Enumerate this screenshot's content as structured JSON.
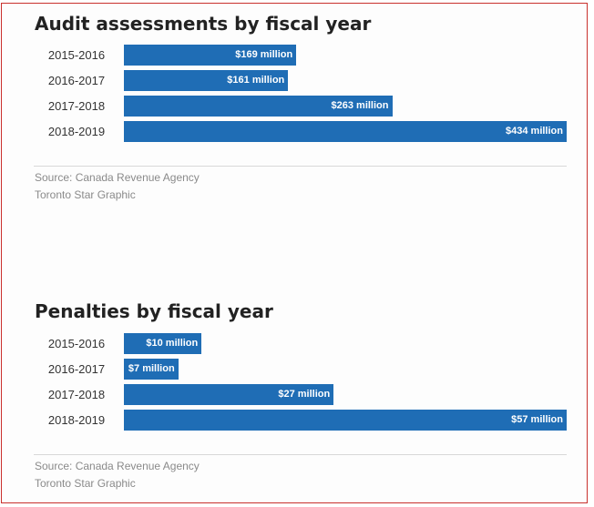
{
  "chart_data": [
    {
      "type": "bar",
      "orientation": "horizontal",
      "title": "Audit assessments by fiscal year",
      "categories": [
        "2015-2016",
        "2016-2017",
        "2017-2018",
        "2018-2019"
      ],
      "values": [
        169,
        161,
        263,
        434
      ],
      "value_labels": [
        "$169 million",
        "$161 million",
        "$263 million",
        "$434 million"
      ],
      "xlim": [
        0,
        434
      ],
      "grid": false,
      "source": "Source: Canada Revenue Agency",
      "credit": "Toronto Star Graphic",
      "color": "#1f6db5"
    },
    {
      "type": "bar",
      "orientation": "horizontal",
      "title": "Penalties by fiscal year",
      "categories": [
        "2015-2016",
        "2016-2017",
        "2017-2018",
        "2018-2019"
      ],
      "values": [
        10,
        7,
        27,
        57
      ],
      "value_labels": [
        "$10 million",
        "$7 million",
        "$27 million",
        "$57 million"
      ],
      "xlim": [
        0,
        57
      ],
      "grid": false,
      "source": "Source: Canada Revenue Agency",
      "credit": "Toronto Star Graphic",
      "color": "#1f6db5"
    }
  ]
}
